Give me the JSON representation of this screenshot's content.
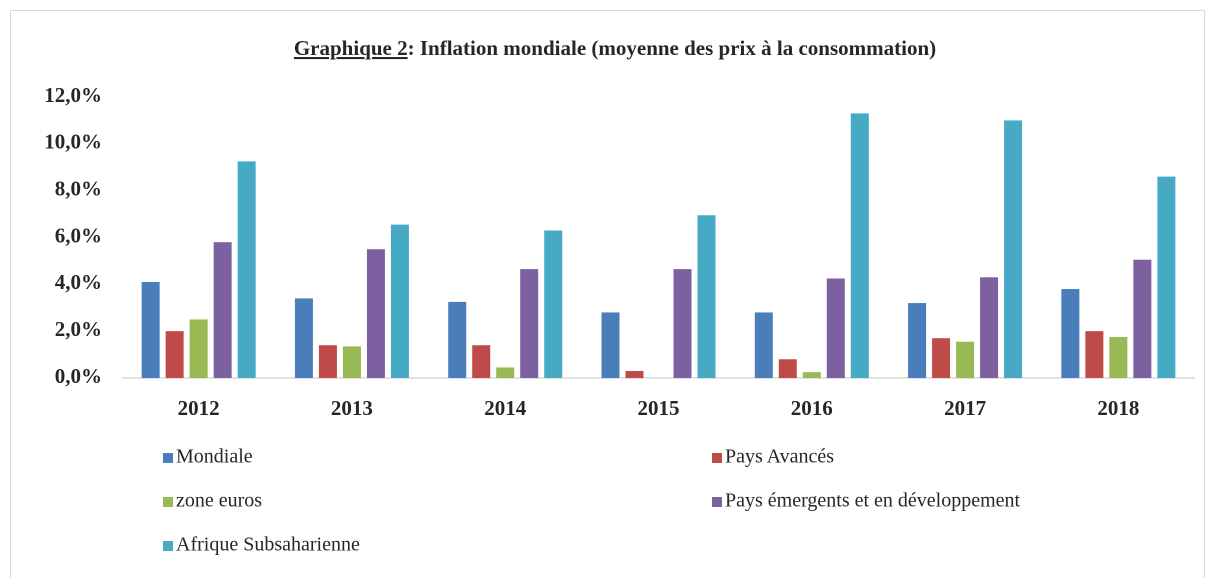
{
  "chart_data": {
    "type": "bar",
    "title": "Graphique 2: Inflation mondiale (moyenne des prix à la consommation)",
    "categories": [
      "2012",
      "2013",
      "2014",
      "2015",
      "2016",
      "2017",
      "2018"
    ],
    "series": [
      {
        "name": "Mondiale",
        "color": "#4a7ebb",
        "values": [
          4.1,
          3.4,
          3.25,
          2.8,
          2.8,
          3.2,
          3.8
        ]
      },
      {
        "name": "Pays Avancés",
        "color": "#be4b48",
        "values": [
          2.0,
          1.4,
          1.4,
          0.3,
          0.8,
          1.7,
          2.0
        ]
      },
      {
        "name": "zone euros",
        "color": "#98b954",
        "values": [
          2.5,
          1.35,
          0.45,
          0.0,
          0.25,
          1.55,
          1.75
        ]
      },
      {
        "name": "Pays émergents et en développement",
        "color": "#7d60a0",
        "values": [
          5.8,
          5.5,
          4.65,
          4.65,
          4.25,
          4.3,
          5.05
        ]
      },
      {
        "name": "Afrique Subsaharienne",
        "color": "#46aac5",
        "values": [
          9.25,
          6.55,
          6.3,
          6.95,
          11.3,
          11.0,
          8.6
        ]
      }
    ],
    "ylim": [
      0,
      12
    ],
    "yticks": [
      {
        "value": 0,
        "label": "0,0%"
      },
      {
        "value": 2,
        "label": "2,0%"
      },
      {
        "value": 4,
        "label": "4,0%"
      },
      {
        "value": 6,
        "label": "6,0%"
      },
      {
        "value": 8,
        "label": "8,0%"
      },
      {
        "value": 10,
        "label": "10,0%"
      },
      {
        "value": 12,
        "label": "12,0%"
      }
    ],
    "grid": false,
    "legend": "bottom"
  }
}
